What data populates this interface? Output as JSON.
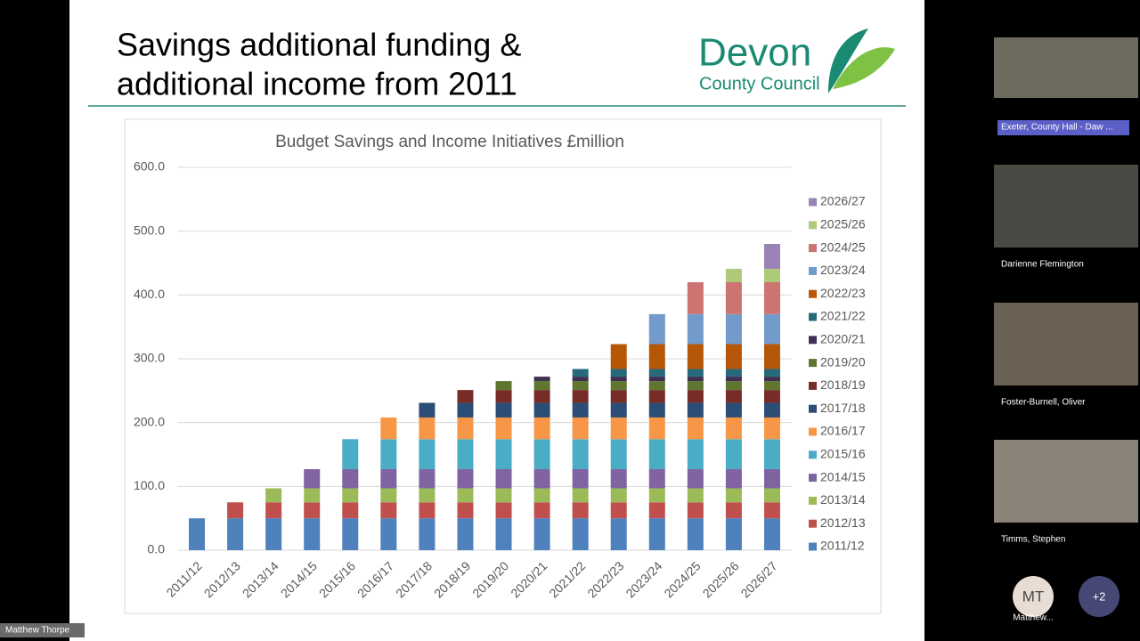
{
  "slide": {
    "title_lines": [
      "Savings additional funding &",
      "additional income from 2011"
    ],
    "logo": {
      "line1": "Devon",
      "line2": "County Council"
    }
  },
  "chart_data": {
    "type": "bar",
    "stacked": true,
    "title": "Budget Savings and Income Initiatives £million",
    "categories": [
      "2011/12",
      "2012/13",
      "2013/14",
      "2014/15",
      "2015/16",
      "2016/17",
      "2017/18",
      "2018/19",
      "2019/20",
      "2020/21",
      "2021/22",
      "2022/23",
      "2023/24",
      "2024/25",
      "2025/26",
      "2026/27"
    ],
    "ylim": [
      0,
      600
    ],
    "yticks": [
      {
        "value": 0,
        "label": "0.0"
      },
      {
        "value": 100,
        "label": "100.0"
      },
      {
        "value": 200,
        "label": "200.0"
      },
      {
        "value": 300,
        "label": "300.0"
      },
      {
        "value": 400,
        "label": "400.0"
      },
      {
        "value": 500,
        "label": "500.0"
      },
      {
        "value": 600,
        "label": "600.0"
      }
    ],
    "grid": true,
    "legend": "right",
    "series": [
      {
        "name": "2011/12",
        "color": "#4f81bd",
        "values": [
          50,
          50,
          50,
          50,
          50,
          50,
          50,
          50,
          50,
          50,
          50,
          50,
          50,
          50,
          50,
          50
        ]
      },
      {
        "name": "2012/13",
        "color": "#c0504d",
        "values": [
          null,
          25,
          25,
          25,
          25,
          25,
          25,
          25,
          25,
          25,
          25,
          25,
          25,
          25,
          25,
          25
        ]
      },
      {
        "name": "2013/14",
        "color": "#9bbb59",
        "values": [
          null,
          null,
          22,
          22,
          22,
          22,
          22,
          22,
          22,
          22,
          22,
          22,
          22,
          22,
          22,
          22
        ]
      },
      {
        "name": "2014/15",
        "color": "#8064a2",
        "values": [
          null,
          null,
          null,
          30,
          30,
          30,
          30,
          30,
          30,
          30,
          30,
          30,
          30,
          30,
          30,
          30
        ]
      },
      {
        "name": "2015/16",
        "color": "#4bacc6",
        "values": [
          null,
          null,
          null,
          null,
          47,
          47,
          47,
          47,
          47,
          47,
          47,
          47,
          47,
          47,
          47,
          47
        ]
      },
      {
        "name": "2016/17",
        "color": "#f79646",
        "values": [
          null,
          null,
          null,
          null,
          null,
          34,
          34,
          34,
          34,
          34,
          34,
          34,
          34,
          34,
          34,
          34
        ]
      },
      {
        "name": "2017/18",
        "color": "#2c4d75",
        "values": [
          null,
          null,
          null,
          null,
          null,
          null,
          23,
          23,
          23,
          23,
          23,
          23,
          23,
          23,
          23,
          23
        ]
      },
      {
        "name": "2018/19",
        "color": "#772c2a",
        "values": [
          null,
          null,
          null,
          null,
          null,
          null,
          null,
          20,
          20,
          20,
          20,
          20,
          20,
          20,
          20,
          20
        ]
      },
      {
        "name": "2019/20",
        "color": "#5f7530",
        "values": [
          null,
          null,
          null,
          null,
          null,
          null,
          null,
          null,
          14,
          14,
          14,
          14,
          14,
          14,
          14,
          14
        ]
      },
      {
        "name": "2020/21",
        "color": "#403152",
        "values": [
          null,
          null,
          null,
          null,
          null,
          null,
          null,
          null,
          null,
          7,
          7,
          7,
          7,
          7,
          7,
          7
        ]
      },
      {
        "name": "2021/22",
        "color": "#276a7c",
        "values": [
          null,
          null,
          null,
          null,
          null,
          null,
          null,
          null,
          null,
          null,
          12,
          12,
          12,
          12,
          12,
          12
        ]
      },
      {
        "name": "2022/23",
        "color": "#b65708",
        "values": [
          null,
          null,
          null,
          null,
          null,
          null,
          null,
          null,
          null,
          null,
          null,
          39,
          39,
          39,
          39,
          39
        ]
      },
      {
        "name": "2023/24",
        "color": "#729aca",
        "values": [
          null,
          null,
          null,
          null,
          null,
          null,
          null,
          null,
          null,
          null,
          null,
          null,
          47,
          47,
          47,
          47
        ]
      },
      {
        "name": "2024/25",
        "color": "#cd7371",
        "values": [
          null,
          null,
          null,
          null,
          null,
          null,
          null,
          null,
          null,
          null,
          null,
          null,
          null,
          50,
          50,
          50
        ]
      },
      {
        "name": "2025/26",
        "color": "#afc97a",
        "values": [
          null,
          null,
          null,
          null,
          null,
          null,
          null,
          null,
          null,
          null,
          null,
          null,
          null,
          null,
          21,
          21
        ]
      },
      {
        "name": "2026/27",
        "color": "#9983b5",
        "values": [
          null,
          null,
          null,
          null,
          null,
          null,
          null,
          null,
          null,
          null,
          null,
          null,
          null,
          null,
          null,
          39
        ]
      }
    ]
  },
  "participants": [
    {
      "name": "Exeter, County Hall - Daw ..."
    },
    {
      "name": "Darienne Flemington"
    },
    {
      "name": "Foster-Burnell, Oliver"
    },
    {
      "name": "Timms, Stephen"
    }
  ],
  "overflow": {
    "avatar_initials": "MT",
    "avatar_name": "Matthew...",
    "more": "+2"
  },
  "presenter_label": "Matthew Thorpe"
}
